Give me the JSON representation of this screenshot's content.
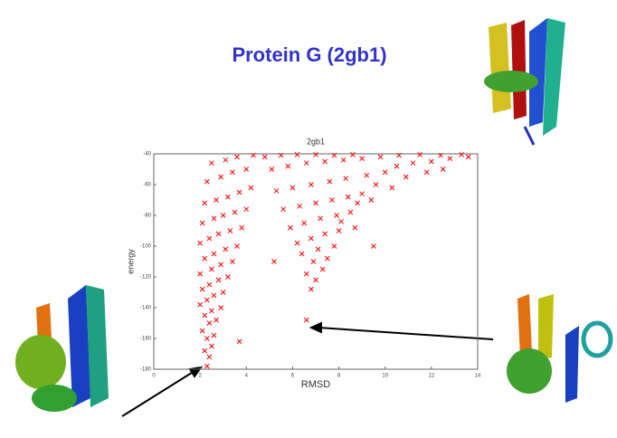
{
  "slide_title": "Protein G  (2gb1)",
  "chart_data": {
    "type": "scatter",
    "title": "2gb1",
    "x_label": "RMSD",
    "y_label": "energy",
    "color": "#ff0000",
    "xlim": [
      0,
      14
    ],
    "xticks": [
      0,
      2,
      4,
      6,
      8,
      10,
      12,
      14
    ],
    "ylim": [
      -180,
      -40
    ],
    "yticks": [
      -180,
      -160,
      -140,
      -120,
      -100,
      -80,
      -60,
      -40
    ],
    "x": [
      2.3,
      2.4,
      2.2,
      2.5,
      2.3,
      2.6,
      2.1,
      2.4,
      2.7,
      2.2,
      2.5,
      2.9,
      2.0,
      2.3,
      2.6,
      3.0,
      2.1,
      2.4,
      2.8,
      3.2,
      2.0,
      2.5,
      2.9,
      3.4,
      2.2,
      2.6,
      3.1,
      3.6,
      2.0,
      2.4,
      2.8,
      3.3,
      3.8,
      2.1,
      2.6,
      3.0,
      3.5,
      4.0,
      2.2,
      2.7,
      3.2,
      3.7,
      4.2,
      2.3,
      2.9,
      3.4,
      4.0,
      2.5,
      3.1,
      3.6,
      4.3,
      6.8,
      7.0,
      6.6,
      7.3,
      6.9,
      7.5,
      6.4,
      7.1,
      7.8,
      6.2,
      6.8,
      7.4,
      8.0,
      5.9,
      6.5,
      7.2,
      7.9,
      8.5,
      5.6,
      6.3,
      7.0,
      7.7,
      8.4,
      9.0,
      5.3,
      6.0,
      6.8,
      7.6,
      8.3,
      9.2,
      10.0,
      5.1,
      5.8,
      6.6,
      7.4,
      8.2,
      9.0,
      9.8,
      10.6,
      11.5,
      12.4,
      13.3,
      4.8,
      5.5,
      6.2,
      7.0,
      7.8,
      8.6,
      10.5,
      11.2,
      12.0,
      12.8,
      13.6,
      11.8,
      10.9,
      12.5,
      9.6,
      10.3,
      8.8,
      9.4,
      8.1,
      8.7,
      6.6,
      3.7,
      9.5,
      5.2
    ],
    "y": [
      -178,
      -172,
      -168,
      -165,
      -160,
      -158,
      -155,
      -150,
      -148,
      -145,
      -142,
      -140,
      -138,
      -135,
      -132,
      -130,
      -128,
      -125,
      -122,
      -120,
      -118,
      -115,
      -112,
      -110,
      -108,
      -105,
      -102,
      -100,
      -98,
      -95,
      -92,
      -90,
      -88,
      -85,
      -82,
      -80,
      -78,
      -76,
      -72,
      -70,
      -68,
      -65,
      -62,
      -58,
      -55,
      -52,
      -50,
      -46,
      -44,
      -42,
      -41,
      -128,
      -122,
      -118,
      -115,
      -110,
      -108,
      -105,
      -102,
      -100,
      -98,
      -95,
      -92,
      -90,
      -88,
      -85,
      -82,
      -80,
      -78,
      -76,
      -74,
      -72,
      -70,
      -68,
      -66,
      -64,
      -62,
      -60,
      -58,
      -56,
      -54,
      -52,
      -50,
      -48,
      -46,
      -45,
      -44,
      -43,
      -42,
      -41,
      -40.5,
      -41,
      -40.5,
      -42,
      -41,
      -40.5,
      -40.5,
      -41,
      -40.5,
      -48,
      -46,
      -45,
      -43,
      -42,
      -52,
      -55,
      -50,
      -60,
      -62,
      -72,
      -70,
      -84,
      -88,
      -148,
      -162,
      -100,
      -110
    ]
  }
}
